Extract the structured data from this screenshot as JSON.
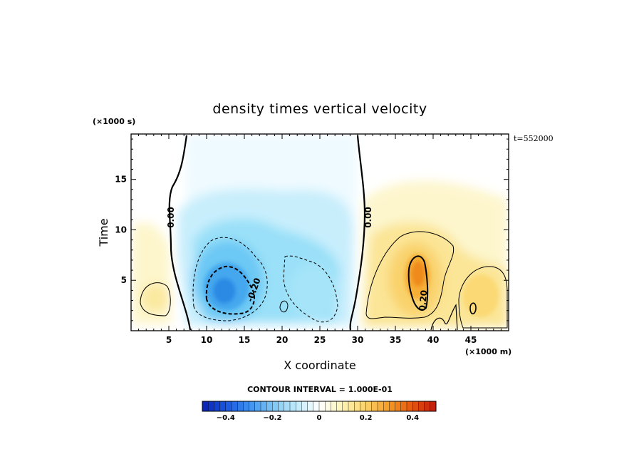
{
  "chart_data": {
    "type": "heatmap",
    "title": "density times vertical velocity",
    "xlabel": "X coordinate",
    "ylabel": "Time",
    "x_unit": "(×1000 m)",
    "y_unit": "(×1000 s)",
    "timestamp": "t=552000",
    "xlim": [
      0,
      50
    ],
    "ylim": [
      0,
      19.5
    ],
    "x_ticks": [
      5,
      10,
      15,
      20,
      25,
      30,
      35,
      40,
      45
    ],
    "x_tick_labels": [
      "5",
      "10",
      "15",
      "20",
      "25",
      "30",
      "35",
      "40",
      "45"
    ],
    "y_ticks": [
      5,
      10,
      15
    ],
    "y_tick_labels": [
      "5",
      "10",
      "15"
    ],
    "contour_interval_text": "CONTOUR INTERVAL = 1.000E-01",
    "colorbar": {
      "range": [
        -0.5,
        0.5
      ],
      "tick_values": [
        -0.4,
        -0.2,
        0,
        0.2,
        0.4
      ],
      "tick_labels": [
        "−0.4",
        "−0.2",
        "0",
        "0.2",
        "0.4"
      ],
      "colors": [
        "#0a1fb3",
        "#1a56e0",
        "#3d8ff0",
        "#7cc6f5",
        "#bfe9fb",
        "#ffffff",
        "#fdf3b4",
        "#fbd36a",
        "#f59a22",
        "#e55510",
        "#c0190b"
      ]
    },
    "contour_labels": [
      {
        "x": 5.3,
        "y": 10.8,
        "text": "0.00"
      },
      {
        "x": 31.3,
        "y": 10.8,
        "text": "0.00"
      },
      {
        "x": 16.0,
        "y": 3.8,
        "text": "-0.20"
      },
      {
        "x": 39.2,
        "y": 3.0,
        "text": "0.20"
      }
    ],
    "features": [
      {
        "kind": "negative",
        "label": "neg-region-west",
        "x": [
          8,
          30
        ]
      },
      {
        "kind": "negative-core",
        "x": 13,
        "y": 4,
        "value": -0.35
      },
      {
        "kind": "positive-core",
        "x": 37.6,
        "y": 5.0,
        "value": 0.35
      },
      {
        "kind": "positive-east",
        "x": 47,
        "y": 3.5,
        "value": 0.2
      },
      {
        "kind": "positive-left",
        "x": 3.5,
        "y": 4.0,
        "value": 0.12
      }
    ]
  }
}
